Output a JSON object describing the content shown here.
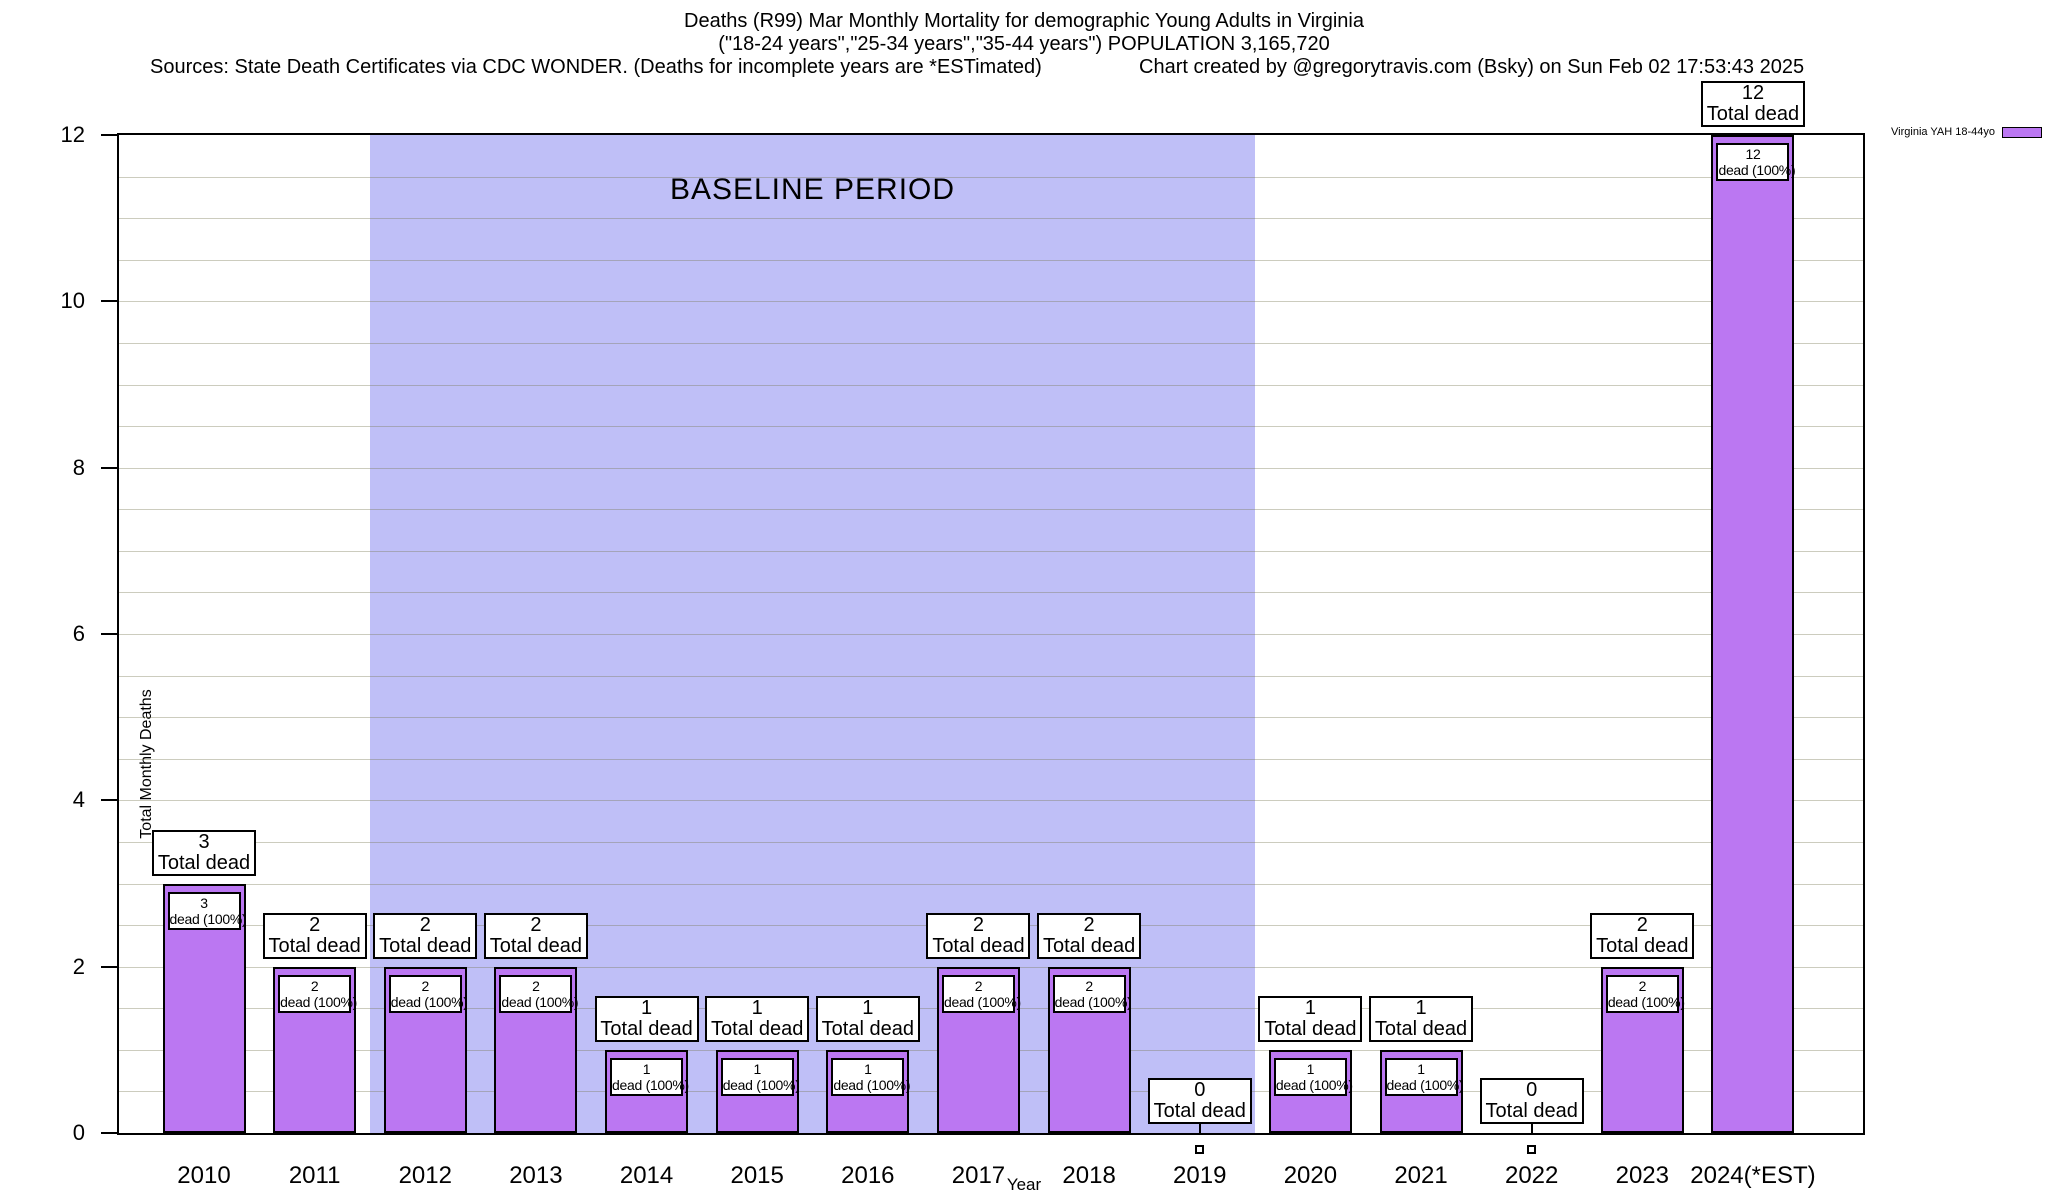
{
  "header": {
    "title_line1": "Deaths (R99) Mar Monthly Mortality for demographic Young Adults in Virginia",
    "title_line2": "(\"18-24 years\",\"25-34 years\",\"35-44 years\") POPULATION 3,165,720",
    "sources_note": "Sources: State Death Certificates via CDC WONDER. (Deaths for incomplete years are *ESTimated)",
    "credit_note": "Chart created by @gregorytravis.com (Bsky) on Sun Feb 02 17:53:43 2025"
  },
  "legend": {
    "label": "Virginia YAH 18-44yo",
    "swatch_color": "#bb77f2"
  },
  "baseline": {
    "label": "BASELINE PERIOD",
    "from_year": "2012",
    "to_year": "2019",
    "color": "#bfbff7"
  },
  "axes": {
    "y_label": "Total Monthly Deaths",
    "x_label": "Year",
    "y_major_ticks": [
      0,
      2,
      4,
      6,
      8,
      10,
      12
    ],
    "y_minor_step": 0.5,
    "ylim": [
      0,
      12
    ]
  },
  "bar_annotations": {
    "total_label": "Total dead",
    "inner_label": "dead (100%)"
  },
  "colors": {
    "bar": "#bb77f2",
    "baseline_region": "#bfbff7",
    "grid": "rgba(120,120,85,0.38)",
    "frame": "#000000"
  },
  "chart_data": {
    "type": "bar",
    "title": "Deaths (R99) Mar Monthly Mortality for demographic Young Adults in Virginia",
    "subtitle": "(\"18-24 years\",\"25-34 years\",\"35-44 years\") POPULATION 3,165,720",
    "categories": [
      "2010",
      "2011",
      "2012",
      "2013",
      "2014",
      "2015",
      "2016",
      "2017",
      "2018",
      "2019",
      "2020",
      "2021",
      "2022",
      "2023",
      "2024(*EST)"
    ],
    "series": [
      {
        "name": "Virginia YAH 18-44yo",
        "values": [
          3,
          2,
          2,
          2,
          1,
          1,
          1,
          2,
          2,
          0,
          1,
          1,
          0,
          2,
          12
        ]
      }
    ],
    "xlabel": "Year",
    "ylabel": "Total Monthly Deaths",
    "ylim": [
      0,
      12
    ],
    "grid": true,
    "legend_position": "top-right",
    "baseline_period_years": [
      "2012",
      "2019"
    ],
    "annotation_note": "Each bar labeled with total (\"N Total dead\") above and \"N dead (100%)\" box inside bar; zero-value years show box at axis with small square marker below axis"
  }
}
